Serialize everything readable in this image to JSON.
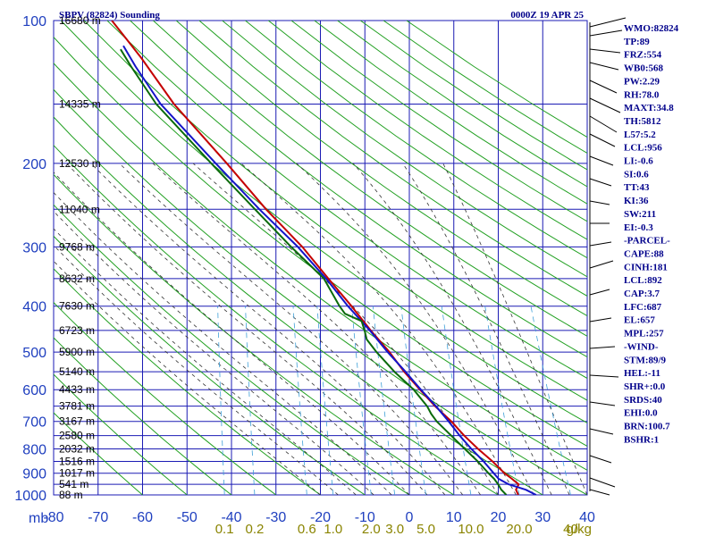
{
  "header": {
    "station": "SBPV (82824) Sounding",
    "time": "0000Z 19 APR 25"
  },
  "axis_units": {
    "pressure": "mb",
    "mixing_ratio": "g/kg"
  },
  "indices": [
    "WMO:82824",
    "TP:89",
    "FRZ:554",
    "WB0:568",
    "PW:2.29",
    "RH:78.0",
    "MAXT:34.8",
    "TH:5812",
    "L57:5.2",
    "LCL:956",
    "LI:-0.6",
    "SI:0.6",
    "TT:43",
    "KI:36",
    "SW:211",
    "EI:-0.3",
    "-PARCEL-",
    "CAPE:88",
    "CINH:181",
    "LCL:892",
    "CAP:3.7",
    "LFC:687",
    "EL:657",
    "MPL:257",
    "-WIND-",
    "STM:89/9",
    "HEL:-11",
    "SHR+:0.0",
    "SRDS:40",
    "EHI:0.0",
    "BRN:100.7",
    "BSHR:1"
  ],
  "colors": {
    "grid": "#1b1bb4",
    "dry_adiabat": "#22a022",
    "moist_adiabat": "#333333",
    "mixing_ratio": "#3fa0d8",
    "temperature": "#c40000",
    "virtual_temperature": "#1414c8",
    "dewpoint": "#0a6a0a",
    "header_text": "#00008b",
    "axis_label": "#1f3fbf",
    "mixing_label": "#8a8400"
  },
  "chart_data": {
    "type": "skew-t log-p",
    "y_axis": {
      "quantity": "pressure",
      "unit": "mb",
      "scale": "log",
      "range": [
        1000,
        100
      ],
      "tick_labels": [
        "100",
        "200",
        "300",
        "400",
        "500",
        "600",
        "700",
        "800",
        "900",
        "1000"
      ]
    },
    "x_axis": {
      "quantity": "temperature",
      "unit": "°C",
      "range": [
        -80,
        40
      ],
      "tick_labels": [
        "-80",
        "-70",
        "-60",
        "-50",
        "-40",
        "-30",
        "-20",
        "-10",
        "0",
        "10",
        "20",
        "30",
        "40"
      ]
    },
    "height_labels": [
      {
        "p": 100,
        "label": "16680 m"
      },
      {
        "p": 150,
        "label": "14335 m"
      },
      {
        "p": 200,
        "label": "12530 m"
      },
      {
        "p": 250,
        "label": "11040 m"
      },
      {
        "p": 300,
        "label": "9768 m"
      },
      {
        "p": 350,
        "label": "8632 m"
      },
      {
        "p": 400,
        "label": "7630 m"
      },
      {
        "p": 450,
        "label": "6723 m"
      },
      {
        "p": 500,
        "label": "5900 m"
      },
      {
        "p": 550,
        "label": "5140 m"
      },
      {
        "p": 600,
        "label": "4433 m"
      },
      {
        "p": 650,
        "label": "3781 m"
      },
      {
        "p": 700,
        "label": "3167 m"
      },
      {
        "p": 750,
        "label": "2580 m"
      },
      {
        "p": 800,
        "label": "2032 m"
      },
      {
        "p": 850,
        "label": "1516 m"
      },
      {
        "p": 900,
        "label": "1017 m"
      },
      {
        "p": 950,
        "label": "541 m"
      },
      {
        "p": 1000,
        "label": "88 m"
      }
    ],
    "mixing_ratio_labels": [
      "0.1",
      "0.2",
      "0.6",
      "1.0",
      "2.0",
      "3.0",
      "5.0",
      "10.0",
      "20.0",
      "40",
      "g/kg"
    ],
    "series": [
      {
        "key": "temperature",
        "points": [
          {
            "p": 1000,
            "t": 24.5
          },
          {
            "p": 975,
            "t": 23.8
          },
          {
            "p": 950,
            "t": 24.2
          },
          {
            "p": 925,
            "t": 22.5
          },
          {
            "p": 900,
            "t": 20.6
          },
          {
            "p": 850,
            "t": 17.5
          },
          {
            "p": 800,
            "t": 13.8
          },
          {
            "p": 750,
            "t": 10.2
          },
          {
            "p": 700,
            "t": 6.8
          },
          {
            "p": 650,
            "t": 2.6
          },
          {
            "p": 600,
            "t": -1.4
          },
          {
            "p": 550,
            "t": -5.6
          },
          {
            "p": 500,
            "t": -9.6
          },
          {
            "p": 450,
            "t": -14.6
          },
          {
            "p": 400,
            "t": -19.8
          },
          {
            "p": 350,
            "t": -26.0
          },
          {
            "p": 300,
            "t": -33.0
          },
          {
            "p": 250,
            "t": -42.5
          },
          {
            "p": 200,
            "t": -53.0
          },
          {
            "p": 150,
            "t": -67.0
          },
          {
            "p": 120,
            "t": -76.0
          },
          {
            "p": 107,
            "t": -81.0
          },
          {
            "p": 100,
            "t": -84.0
          }
        ]
      },
      {
        "key": "virtual_temperature",
        "points": [
          {
            "p": 1000,
            "t": 28.5
          },
          {
            "p": 975,
            "t": 26.0
          },
          {
            "p": 950,
            "t": 22.0
          },
          {
            "p": 925,
            "t": 19.5
          },
          {
            "p": 900,
            "t": 18.2
          },
          {
            "p": 850,
            "t": 15.5
          },
          {
            "p": 800,
            "t": 12.3
          },
          {
            "p": 750,
            "t": 9.2
          },
          {
            "p": 700,
            "t": 6.2
          },
          {
            "p": 650,
            "t": 2.8
          },
          {
            "p": 600,
            "t": -1.2
          },
          {
            "p": 550,
            "t": -5.3
          },
          {
            "p": 500,
            "t": -10.0
          },
          {
            "p": 450,
            "t": -14.8
          },
          {
            "p": 400,
            "t": -20.6
          },
          {
            "p": 350,
            "t": -26.5
          },
          {
            "p": 300,
            "t": -34.0
          },
          {
            "p": 250,
            "t": -44.0
          },
          {
            "p": 200,
            "t": -55.5
          },
          {
            "p": 150,
            "t": -70.0
          },
          {
            "p": 125,
            "t": -77.0
          },
          {
            "p": 113,
            "t": -80.5
          }
        ]
      },
      {
        "key": "dewpoint",
        "points": [
          {
            "p": 1000,
            "t": 21.8
          },
          {
            "p": 975,
            "t": 20.5
          },
          {
            "p": 950,
            "t": 19.6
          },
          {
            "p": 925,
            "t": 18.5
          },
          {
            "p": 900,
            "t": 17.0
          },
          {
            "p": 850,
            "t": 14.2
          },
          {
            "p": 800,
            "t": 10.8
          },
          {
            "p": 750,
            "t": 7.3
          },
          {
            "p": 700,
            "t": 3.5
          },
          {
            "p": 675,
            "t": 2.0
          },
          {
            "p": 650,
            "t": 0.8
          },
          {
            "p": 600,
            "t": -2.8
          },
          {
            "p": 550,
            "t": -7.8
          },
          {
            "p": 500,
            "t": -12.5
          },
          {
            "p": 470,
            "t": -15.2
          },
          {
            "p": 450,
            "t": -16.0
          },
          {
            "p": 430,
            "t": -17.0
          },
          {
            "p": 415,
            "t": -21.0
          },
          {
            "p": 400,
            "t": -22.5
          },
          {
            "p": 350,
            "t": -27.0
          },
          {
            "p": 300,
            "t": -35.5
          },
          {
            "p": 250,
            "t": -45.0
          },
          {
            "p": 200,
            "t": -56.5
          },
          {
            "p": 150,
            "t": -71.0
          },
          {
            "p": 125,
            "t": -78.0
          },
          {
            "p": 115,
            "t": -81.0
          }
        ]
      }
    ]
  }
}
